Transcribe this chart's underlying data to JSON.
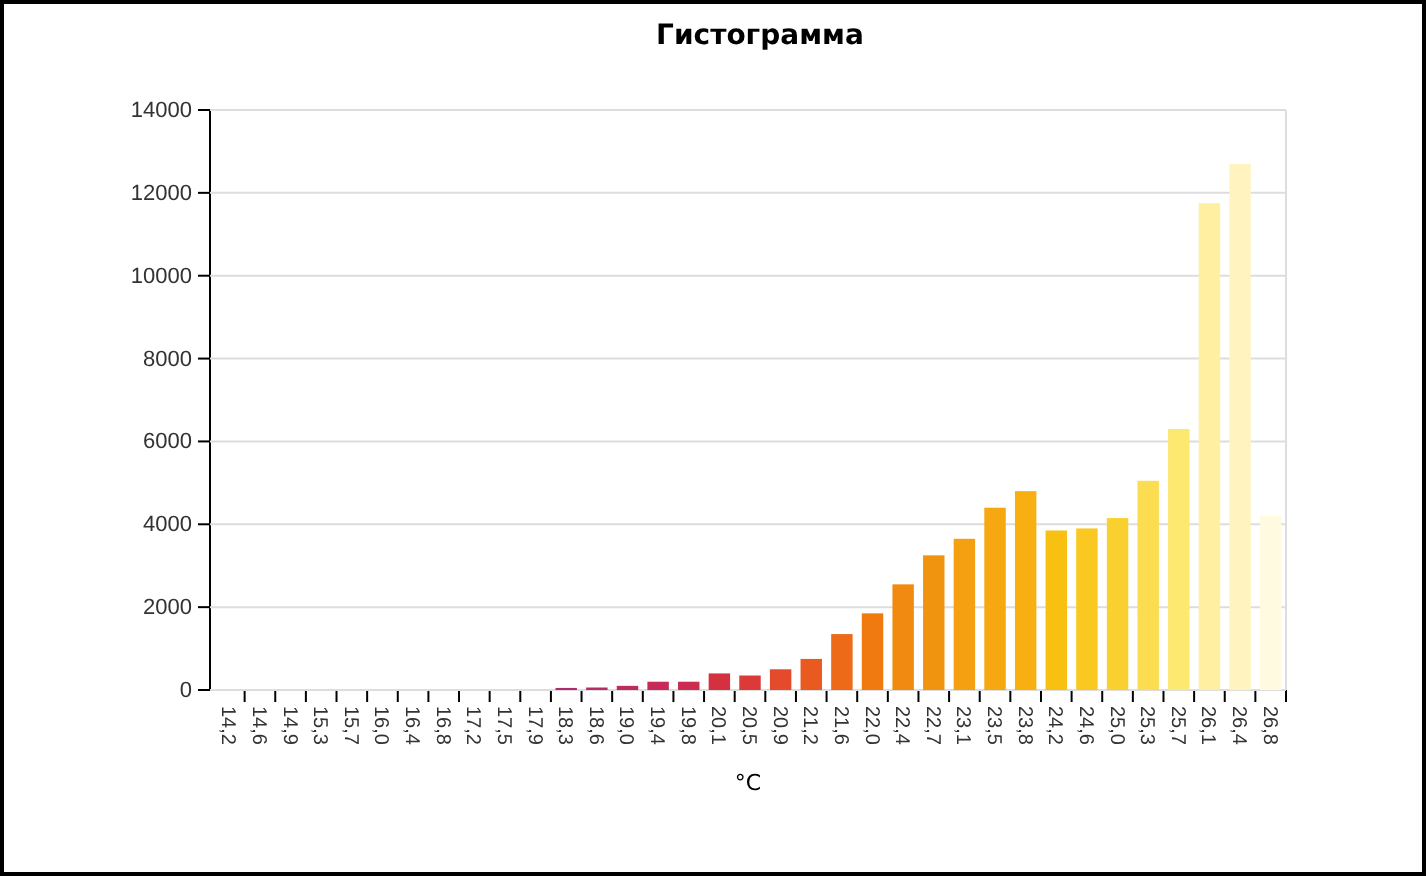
{
  "chart_data": {
    "type": "bar",
    "title": "Гистограмма",
    "xlabel": "°C",
    "categories": [
      "14,2",
      "14,6",
      "14,9",
      "15,3",
      "15,7",
      "16,0",
      "16,4",
      "16,8",
      "17,2",
      "17,5",
      "17,9",
      "18,3",
      "18,6",
      "19,0",
      "19,4",
      "19,8",
      "20,1",
      "20,5",
      "20,9",
      "21,2",
      "21,6",
      "22,0",
      "22,4",
      "22,7",
      "23,1",
      "23,5",
      "23,8",
      "24,2",
      "24,6",
      "25,0",
      "25,3",
      "25,7",
      "26,1",
      "26,4",
      "26,8"
    ],
    "values": [
      0,
      0,
      0,
      0,
      0,
      0,
      0,
      0,
      0,
      0,
      0,
      50,
      60,
      100,
      200,
      200,
      400,
      350,
      500,
      750,
      1350,
      1850,
      2550,
      3250,
      3650,
      4400,
      4800,
      3850,
      3900,
      4150,
      5050,
      6300,
      11750,
      12700,
      4200
    ],
    "colors": [
      "#a82a78",
      "#a82a78",
      "#a82a78",
      "#a82a78",
      "#a82a78",
      "#a82a78",
      "#a82a78",
      "#a82a78",
      "#a82a78",
      "#a82a78",
      "#a82a78",
      "#b02a70",
      "#b82a68",
      "#c02a60",
      "#c82a58",
      "#cc2c50",
      "#d43040",
      "#dc3a38",
      "#e44a2c",
      "#e85a20",
      "#ec6a18",
      "#f07a10",
      "#f08a10",
      "#f09410",
      "#f5a010",
      "#f5a810",
      "#f8b010",
      "#f8c010",
      "#fac820",
      "#fad030",
      "#fcdc50",
      "#fde870",
      "#fef0a0",
      "#fff4c0",
      "#fffae0"
    ],
    "ylim": [
      0,
      14000
    ],
    "yticks": [
      0,
      2000,
      4000,
      6000,
      8000,
      10000,
      12000,
      14000
    ],
    "grid": "y"
  }
}
